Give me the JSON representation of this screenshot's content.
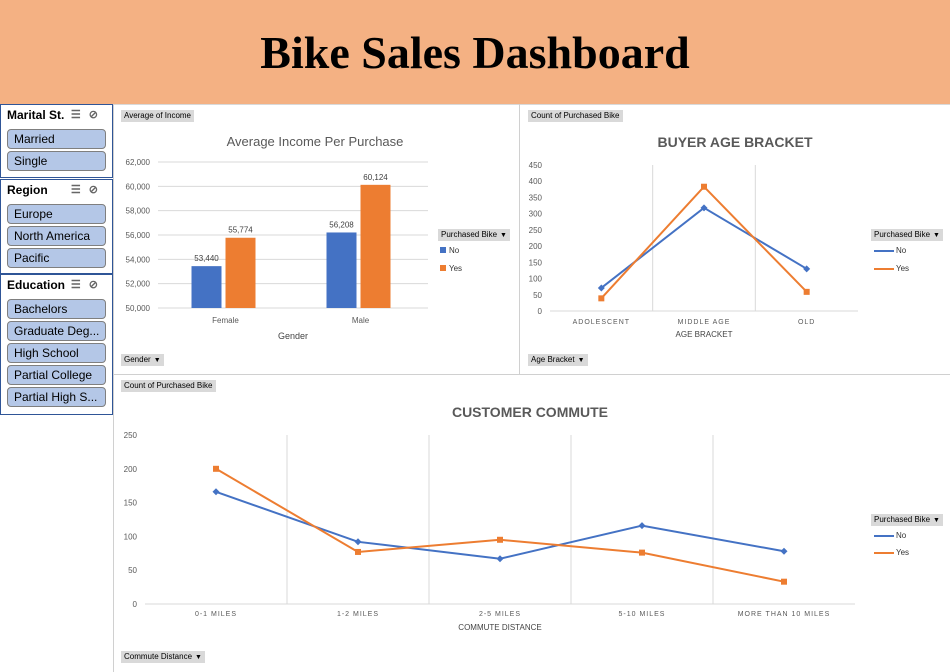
{
  "header": {
    "title": "Bike Sales Dashboard"
  },
  "slicers": [
    {
      "title": "Marital St...",
      "items": [
        "Married",
        "Single"
      ]
    },
    {
      "title": "Region",
      "items": [
        "Europe",
        "North America",
        "Pacific"
      ]
    },
    {
      "title": "Education",
      "items": [
        "Bachelors",
        "Graduate Deg...",
        "High School",
        "Partial College",
        "Partial High S..."
      ]
    }
  ],
  "colors": {
    "no": "#4472c4",
    "yes": "#ed7d31",
    "banner": "#f4b183",
    "slicer_item": "#b4c7e7"
  },
  "charts": {
    "income": {
      "value_field": "Average of Income",
      "axis_field": "Gender",
      "legend_title": "Purchased Bike",
      "legend_items": [
        "No",
        "Yes"
      ]
    },
    "age": {
      "value_field": "Count of Purchased Bike",
      "axis_field": "Age Bracket",
      "legend_title": "Purchased Bike",
      "legend_items": [
        "No",
        "Yes"
      ]
    },
    "commute": {
      "value_field": "Count of Purchased Bike",
      "axis_field": "Commute Distance",
      "legend_title": "Purchased Bike",
      "legend_items": [
        "No",
        "Yes"
      ]
    }
  },
  "chart_data": [
    {
      "type": "bar",
      "title": "Average Income Per Purchase",
      "xlabel": "Gender",
      "ylabel": "",
      "categories": [
        "Female",
        "Male"
      ],
      "series": [
        {
          "name": "No",
          "values": [
            53440,
            56208
          ]
        },
        {
          "name": "Yes",
          "values": [
            55774,
            60124
          ]
        }
      ],
      "data_labels": [
        [
          "53,440",
          "56,208"
        ],
        [
          "55,774",
          "60,124"
        ]
      ],
      "ylim": [
        50000,
        62000
      ],
      "yticks": [
        "50,000",
        "52,000",
        "54,000",
        "56,000",
        "58,000",
        "60,000",
        "62,000"
      ],
      "grid": true,
      "legend": "right"
    },
    {
      "type": "line",
      "title": "BUYER AGE BRACKET",
      "xlabel": "AGE BRACKET",
      "ylabel": "",
      "categories": [
        "ADOLESCENT",
        "MIDDLE AGE",
        "OLD"
      ],
      "series": [
        {
          "name": "No",
          "values": [
            71,
            318,
            130
          ]
        },
        {
          "name": "Yes",
          "values": [
            39,
            383,
            59
          ]
        }
      ],
      "ylim": [
        0,
        450
      ],
      "yticks": [
        "0",
        "50",
        "100",
        "150",
        "200",
        "250",
        "300",
        "350",
        "400",
        "450"
      ],
      "grid": true,
      "legend": "right"
    },
    {
      "type": "line",
      "title": "CUSTOMER COMMUTE",
      "xlabel": "COMMUTE DISTANCE",
      "ylabel": "",
      "categories": [
        "0-1 MILES",
        "1-2 MILES",
        "2-5 MILES",
        "5-10 MILES",
        "MORE THAN 10 MILES"
      ],
      "series": [
        {
          "name": "No",
          "values": [
            166,
            92,
            67,
            116,
            78
          ]
        },
        {
          "name": "Yes",
          "values": [
            200,
            77,
            95,
            76,
            33
          ]
        }
      ],
      "ylim": [
        0,
        250
      ],
      "yticks": [
        "0",
        "50",
        "100",
        "150",
        "200",
        "250"
      ],
      "grid": true,
      "legend": "right"
    }
  ]
}
